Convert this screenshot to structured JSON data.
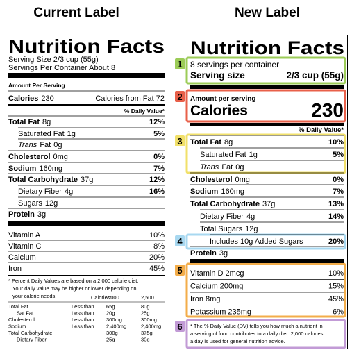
{
  "left": {
    "heading": "Current Label",
    "title": "Nutrition Facts",
    "serving_size": "Serving Size 2/3 cup (55g)",
    "servings": "Servings Per Container About 8",
    "amount_per_serving": "Amount Per Serving",
    "calories_label": "Calories",
    "calories_value": "230",
    "calories_from_fat": "Calories from Fat 72",
    "dv_header": "% Daily Value*",
    "rows": [
      {
        "name": "Total Fat",
        "amount": "8g",
        "dv": "12%"
      },
      {
        "name": "Saturated Fat",
        "amount": "1g",
        "dv": "5%"
      },
      {
        "prefix": "Trans",
        "name": "Fat",
        "amount": "0g"
      },
      {
        "name": "Cholesterol",
        "amount": "0mg",
        "dv": "0%"
      },
      {
        "name": "Sodium",
        "amount": "160mg",
        "dv": "7%"
      },
      {
        "name": "Total Carbohydrate",
        "amount": "37g",
        "dv": "12%"
      },
      {
        "name": "Dietary Fiber",
        "amount": "4g",
        "dv": "16%"
      },
      {
        "name": "Sugars",
        "amount": "12g"
      },
      {
        "name": "Protein",
        "amount": "3g"
      }
    ],
    "vitamins": [
      {
        "name": "Vitamin A",
        "dv": "10%"
      },
      {
        "name": "Vitamin C",
        "dv": "8%"
      },
      {
        "name": "Calcium",
        "dv": "20%"
      },
      {
        "name": "Iron",
        "dv": "45%"
      }
    ],
    "footnote": [
      "* Percent Daily Values are based on a 2,000 calorie diet.",
      "Your daily value may be higher or lower depending on",
      "your calorie needs."
    ],
    "table_header": [
      "Calories:",
      "2,000",
      "2,500"
    ],
    "table_rows": [
      [
        "Total Fat",
        "Less than",
        "65g",
        "80g"
      ],
      [
        "Sat Fat",
        "Less than",
        "20g",
        "25g"
      ],
      [
        "Cholesterol",
        "Less than",
        "300mg",
        "300mg"
      ],
      [
        "Sodium",
        "Less than",
        "2,400mg",
        "2,400mg"
      ],
      [
        "Total Carbohydrate",
        "",
        "300g",
        "375g"
      ],
      [
        "Dietary Fiber",
        "",
        "25g",
        "30g"
      ]
    ]
  },
  "right": {
    "heading": "New Label",
    "title": "Nutrition Facts",
    "servings": "8 servings per container",
    "serving_size_label": "Serving size",
    "serving_size_value": "2/3 cup (55g)",
    "amount_per_serving": "Amount per serving",
    "calories_label": "Calories",
    "calories_value": "230",
    "dv_header": "% Daily Value*",
    "rows": [
      {
        "name": "Total Fat",
        "amount": "8g",
        "dv": "10%"
      },
      {
        "name": "Saturated Fat",
        "amount": "1g",
        "dv": "5%"
      },
      {
        "prefix": "Trans",
        "name": "Fat",
        "amount": "0g"
      },
      {
        "name": "Cholesterol",
        "amount": "0mg",
        "dv": "0%"
      },
      {
        "name": "Sodium",
        "amount": "160mg",
        "dv": "7%"
      },
      {
        "name": "Total Carbohydrate",
        "amount": "37g",
        "dv": "13%"
      },
      {
        "name": "Dietary Fiber",
        "amount": "4g",
        "dv": "14%"
      },
      {
        "name": "Total Sugars",
        "amount": "12g"
      },
      {
        "name": "Includes 10g Added Sugars",
        "dv": "20%"
      },
      {
        "name": "Protein",
        "amount": "3g"
      }
    ],
    "vitamins": [
      {
        "name": "Vitamin D 2mcg",
        "dv": "10%"
      },
      {
        "name": "Calcium 200mg",
        "dv": "15%"
      },
      {
        "name": "Iron 8mg",
        "dv": "45%"
      },
      {
        "name": "Potassium 235mg",
        "dv": "6%"
      }
    ],
    "footnote": [
      "* The % Daily Value (DV) tells you how much a nutrient in",
      "a serving of food contributes to a daily diet. 2,000 calories",
      "a day is used for general nutrition advice."
    ],
    "badges": [
      "1",
      "2",
      "3",
      "4",
      "5",
      "6"
    ]
  }
}
